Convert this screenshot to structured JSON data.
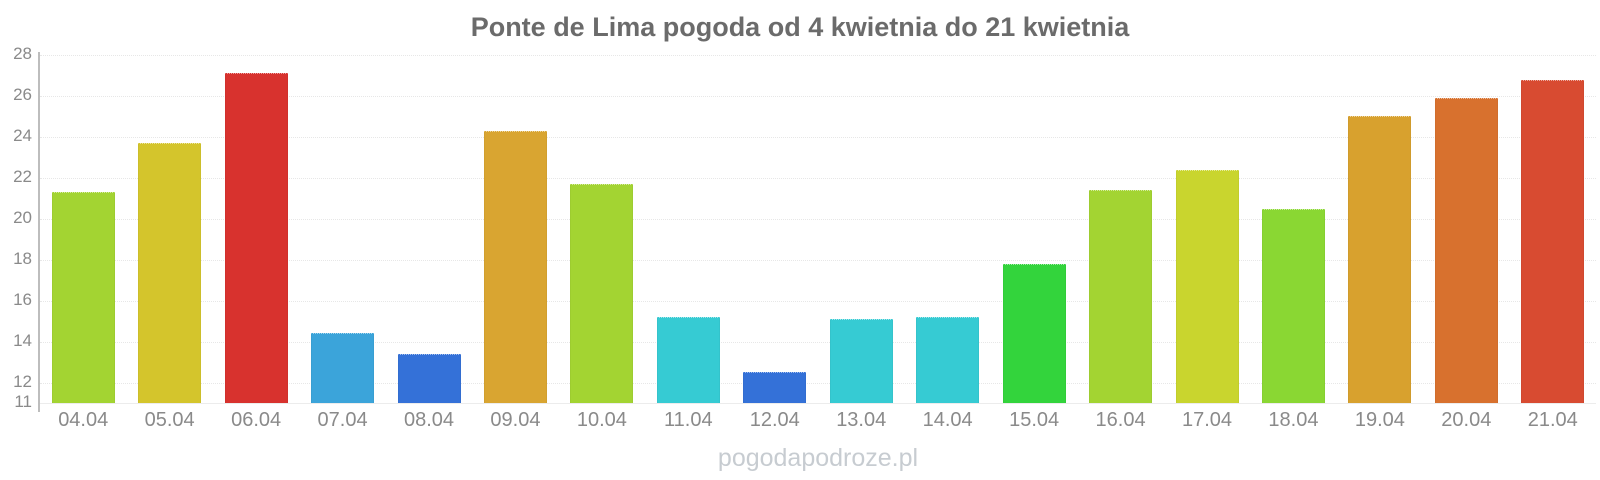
{
  "title": "Ponte de Lima pogoda od 4 kwietnia do 21 kwietnia",
  "watermark": "pogodapodroze.pl",
  "colors": {
    "title_text": "#6b6b6b",
    "axis_labels": "#8a8a8a",
    "axis_line": "#bdbdbd",
    "gridline": "#e7e7e7",
    "background": "#ffffff",
    "watermark_text": "#c7ccd1"
  },
  "chart_data": {
    "type": "bar",
    "title": "Ponte de Lima pogoda od 4 kwietnia do 21 kwietnia",
    "xlabel": "",
    "ylabel": "",
    "categories": [
      "04.04",
      "05.04",
      "06.04",
      "07.04",
      "08.04",
      "09.04",
      "10.04",
      "11.04",
      "12.04",
      "13.04",
      "14.04",
      "15.04",
      "16.04",
      "17.04",
      "18.04",
      "19.04",
      "20.04",
      "21.04"
    ],
    "values": [
      21.3,
      23.7,
      27.1,
      14.4,
      13.4,
      24.3,
      21.7,
      15.2,
      12.5,
      15.1,
      15.2,
      17.8,
      21.4,
      22.4,
      20.5,
      25.0,
      25.9,
      26.8
    ],
    "bar_colors": [
      "#a3d432",
      "#d4c52c",
      "#d8322e",
      "#3ba4da",
      "#3471d8",
      "#d9a531",
      "#a3d432",
      "#36cbd3",
      "#3471d8",
      "#36cbd3",
      "#36cbd3",
      "#33d43c",
      "#a3d432",
      "#c9d52e",
      "#8ad733",
      "#d8a12e",
      "#d8712e",
      "#d84b31"
    ],
    "ylim": [
      11,
      28
    ],
    "yticks": [
      11,
      12,
      14,
      16,
      18,
      20,
      22,
      24,
      26,
      28
    ],
    "grid": "horizontal-dotted",
    "legend": "none"
  }
}
